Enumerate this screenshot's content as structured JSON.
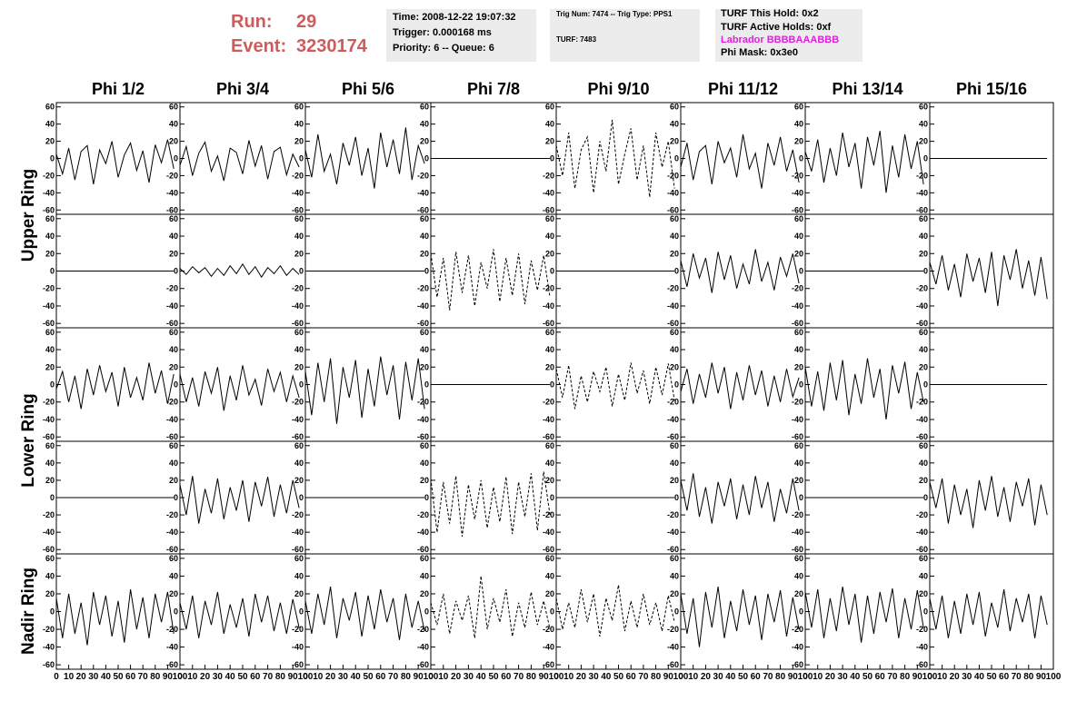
{
  "header": {
    "run_label": "Run:",
    "run": "29",
    "event_label": "Event:",
    "event": "3230174",
    "info_boxes": [
      [
        "Time: 2008-12-22 19:07:32",
        "Trigger: 0.000168 ms",
        "Priority: 6 -- Queue: 6"
      ],
      [
        "Trig Num: 7474 -- Trig Type: PPS1",
        "TURF: 7483"
      ],
      [
        "TURF This Hold: 0x2",
        "TURF Active Holds: 0xf",
        "Labrador BBBBAAABBB",
        "Phi Mask: 0x3e0"
      ]
    ]
  },
  "chart_data": {
    "type": "line",
    "columns": [
      "Phi 1/2",
      "Phi 3/4",
      "Phi 5/6",
      "Phi 7/8",
      "Phi 9/10",
      "Phi 11/12",
      "Phi 13/14",
      "Phi 15/16"
    ],
    "row_labels": [
      "Upper Ring",
      "Lower Ring",
      "Nadir Ring"
    ],
    "x": [
      0,
      5,
      10,
      15,
      20,
      25,
      30,
      35,
      40,
      45,
      50,
      55,
      60,
      65,
      70,
      75,
      80,
      85,
      90,
      95
    ],
    "xlim": [
      0,
      100
    ],
    "xticks": [
      0,
      10,
      20,
      30,
      40,
      50,
      60,
      70,
      80,
      90,
      100
    ],
    "ylim": [
      -65,
      65
    ],
    "yticks": [
      -60,
      -40,
      -20,
      0,
      20,
      40,
      60
    ],
    "line_color": "#000000",
    "panels": [
      [
        {
          "dashed": false,
          "values": [
            5,
            -18,
            12,
            -25,
            8,
            15,
            -30,
            10,
            -6,
            20,
            -22,
            4,
            18,
            -14,
            9,
            -28,
            16,
            -5,
            22,
            -12
          ]
        },
        {
          "dashed": false,
          "values": [
            -8,
            14,
            -20,
            6,
            19,
            -15,
            3,
            -26,
            12,
            7,
            -18,
            21,
            -9,
            15,
            -24,
            8,
            13,
            -19,
            5,
            -10
          ]
        },
        {
          "dashed": false,
          "values": [
            10,
            -22,
            28,
            -15,
            5,
            -30,
            18,
            -8,
            25,
            -20,
            12,
            -35,
            30,
            -10,
            22,
            -18,
            36,
            -25,
            15,
            -6
          ]
        },
        {
          "dashed": false,
          "values": [
            0,
            0,
            0,
            0,
            0,
            0,
            0,
            0,
            0,
            0,
            0,
            0,
            0,
            0,
            0,
            0,
            0,
            0,
            0,
            0
          ]
        },
        {
          "dashed": true,
          "values": [
            15,
            -20,
            30,
            -35,
            10,
            25,
            -40,
            20,
            -15,
            45,
            -30,
            5,
            35,
            -25,
            15,
            -45,
            30,
            -10,
            20,
            -35
          ]
        },
        {
          "dashed": false,
          "values": [
            -10,
            18,
            -25,
            8,
            15,
            -30,
            20,
            -5,
            12,
            -22,
            28,
            -12,
            6,
            -35,
            18,
            -8,
            25,
            -15,
            10,
            -28
          ]
        },
        {
          "dashed": false,
          "values": [
            8,
            -15,
            22,
            -28,
            12,
            -20,
            30,
            -10,
            18,
            -35,
            25,
            -8,
            32,
            -40,
            15,
            -22,
            28,
            -12,
            20,
            -30
          ]
        },
        {
          "dashed": false,
          "values": [
            0,
            0,
            0,
            0,
            0,
            0,
            0,
            0,
            0,
            0,
            0,
            0,
            0,
            0,
            0,
            0,
            0,
            0,
            0,
            0
          ]
        }
      ],
      [
        {
          "dashed": false,
          "values": [
            0,
            0,
            0,
            0,
            0,
            0,
            0,
            0,
            0,
            0,
            0,
            0,
            0,
            0,
            0,
            0,
            0,
            0,
            0,
            0
          ]
        },
        {
          "dashed": false,
          "values": [
            3,
            -4,
            5,
            -2,
            4,
            -6,
            3,
            -5,
            6,
            -3,
            8,
            -4,
            5,
            -7,
            4,
            -3,
            6,
            -5,
            3,
            -4
          ]
        },
        {
          "dashed": false,
          "values": [
            0,
            0,
            0,
            0,
            0,
            0,
            0,
            0,
            0,
            0,
            0,
            0,
            0,
            0,
            0,
            0,
            0,
            0,
            0,
            0
          ]
        },
        {
          "dashed": true,
          "values": [
            20,
            -30,
            15,
            -45,
            22,
            -25,
            18,
            -40,
            10,
            -20,
            25,
            -35,
            15,
            -28,
            20,
            -38,
            12,
            -22,
            18,
            -30
          ]
        },
        {
          "dashed": false,
          "values": [
            0,
            0,
            0,
            0,
            0,
            0,
            0,
            0,
            0,
            0,
            0,
            0,
            0,
            0,
            0,
            0,
            0,
            0,
            0,
            0
          ]
        },
        {
          "dashed": false,
          "values": [
            12,
            -18,
            20,
            -8,
            15,
            -25,
            22,
            -10,
            18,
            -20,
            8,
            -15,
            25,
            -12,
            10,
            -22,
            16,
            -6,
            20,
            -14
          ]
        },
        {
          "dashed": false,
          "values": [
            0,
            0,
            0,
            0,
            0,
            0,
            0,
            0,
            0,
            0,
            0,
            0,
            0,
            0,
            0,
            0,
            0,
            0,
            0,
            0
          ]
        },
        {
          "dashed": false,
          "values": [
            10,
            -15,
            18,
            -22,
            8,
            -30,
            20,
            -12,
            15,
            -25,
            22,
            -40,
            18,
            -10,
            25,
            -20,
            12,
            -28,
            16,
            -32
          ]
        }
      ],
      [
        {
          "dashed": false,
          "values": [
            -5,
            15,
            -20,
            10,
            -28,
            18,
            -12,
            22,
            -8,
            14,
            -25,
            20,
            -15,
            8,
            -18,
            25,
            -10,
            16,
            -22,
            12
          ]
        },
        {
          "dashed": false,
          "values": [
            12,
            -20,
            8,
            -25,
            15,
            -10,
            20,
            -30,
            10,
            -18,
            22,
            -12,
            6,
            -24,
            18,
            -8,
            14,
            -20,
            10,
            -15
          ]
        },
        {
          "dashed": false,
          "values": [
            15,
            -35,
            25,
            -20,
            30,
            -45,
            20,
            -15,
            28,
            -38,
            18,
            -25,
            32,
            -12,
            22,
            -40,
            26,
            -18,
            30,
            -28
          ]
        },
        {
          "dashed": false,
          "values": [
            0,
            0,
            0,
            0,
            0,
            0,
            0,
            0,
            0,
            0,
            0,
            0,
            0,
            0,
            0,
            0,
            0,
            0,
            0,
            0
          ]
        },
        {
          "dashed": true,
          "values": [
            18,
            -15,
            22,
            -28,
            10,
            -20,
            15,
            -8,
            20,
            -25,
            12,
            -18,
            25,
            -10,
            16,
            -22,
            20,
            -12,
            24,
            -18
          ]
        },
        {
          "dashed": false,
          "values": [
            -8,
            18,
            -22,
            12,
            -15,
            25,
            -10,
            20,
            -28,
            14,
            -18,
            22,
            -12,
            16,
            -25,
            10,
            -20,
            18,
            -14,
            8
          ]
        },
        {
          "dashed": false,
          "values": [
            20,
            -25,
            15,
            -30,
            25,
            -18,
            28,
            -35,
            12,
            -22,
            30,
            -15,
            18,
            -40,
            22,
            -10,
            26,
            -28,
            14,
            -20
          ]
        },
        {
          "dashed": false,
          "values": [
            0,
            0,
            0,
            0,
            0,
            0,
            0,
            0,
            0,
            0,
            0,
            0,
            0,
            0,
            0,
            0,
            0,
            0,
            0,
            0
          ]
        }
      ],
      [
        {
          "dashed": false,
          "values": [
            0,
            0,
            0,
            0,
            0,
            0,
            0,
            0,
            0,
            0,
            0,
            0,
            0,
            0,
            0,
            0,
            0,
            0,
            0,
            0
          ]
        },
        {
          "dashed": false,
          "values": [
            15,
            -20,
            25,
            -30,
            10,
            -18,
            22,
            -25,
            12,
            -15,
            20,
            -28,
            18,
            -10,
            24,
            -22,
            15,
            -18,
            20,
            -12
          ]
        },
        {
          "dashed": false,
          "values": [
            0,
            0,
            0,
            0,
            0,
            0,
            0,
            0,
            0,
            0,
            0,
            0,
            0,
            0,
            0,
            0,
            0,
            0,
            0,
            0
          ]
        },
        {
          "dashed": true,
          "values": [
            22,
            -40,
            18,
            -30,
            25,
            -45,
            15,
            -25,
            20,
            -35,
            12,
            -28,
            24,
            -42,
            18,
            -22,
            28,
            -38,
            30,
            -20
          ]
        },
        {
          "dashed": false,
          "values": [
            0,
            0,
            0,
            0,
            0,
            0,
            0,
            0,
            0,
            0,
            0,
            0,
            0,
            0,
            0,
            0,
            0,
            0,
            0,
            0
          ]
        },
        {
          "dashed": false,
          "values": [
            20,
            -15,
            28,
            -22,
            12,
            -30,
            18,
            -10,
            22,
            -25,
            15,
            -20,
            25,
            -12,
            18,
            -28,
            10,
            -18,
            22,
            -15
          ]
        },
        {
          "dashed": false,
          "values": [
            0,
            0,
            0,
            0,
            0,
            0,
            0,
            0,
            0,
            0,
            0,
            0,
            0,
            0,
            0,
            0,
            0,
            0,
            0,
            0
          ]
        },
        {
          "dashed": false,
          "values": [
            18,
            -12,
            22,
            -30,
            15,
            -20,
            10,
            -35,
            20,
            -15,
            25,
            -22,
            12,
            -28,
            18,
            -10,
            22,
            -32,
            15,
            -20
          ]
        }
      ],
      [
        {
          "dashed": false,
          "values": [
            15,
            -30,
            20,
            -25,
            10,
            -38,
            22,
            -15,
            18,
            -28,
            12,
            -35,
            25,
            -20,
            16,
            -30,
            20,
            -12,
            22,
            -25
          ]
        },
        {
          "dashed": false,
          "values": [
            10,
            -20,
            18,
            -30,
            12,
            -15,
            22,
            -25,
            8,
            -18,
            15,
            -28,
            20,
            -12,
            18,
            -22,
            10,
            -25,
            14,
            -18
          ]
        },
        {
          "dashed": false,
          "values": [
            12,
            -25,
            20,
            -15,
            28,
            -30,
            15,
            -10,
            22,
            -28,
            18,
            -20,
            25,
            -12,
            15,
            -32,
            20,
            -18,
            12,
            -22
          ]
        },
        {
          "dashed": true,
          "values": [
            10,
            -15,
            20,
            -25,
            12,
            -10,
            18,
            -30,
            40,
            -20,
            15,
            -12,
            25,
            -28,
            10,
            -18,
            22,
            -15,
            12,
            -20
          ]
        },
        {
          "dashed": true,
          "values": [
            15,
            -20,
            10,
            -18,
            25,
            -12,
            20,
            -28,
            15,
            -10,
            30,
            -22,
            12,
            -18,
            20,
            -15,
            10,
            -22,
            18,
            -12
          ]
        },
        {
          "dashed": false,
          "values": [
            20,
            -25,
            15,
            -40,
            22,
            -18,
            28,
            -30,
            12,
            -22,
            25,
            -15,
            18,
            -32,
            20,
            -12,
            24,
            -28,
            16,
            -20
          ]
        },
        {
          "dashed": false,
          "values": [
            22,
            -18,
            25,
            -30,
            15,
            -22,
            28,
            -15,
            20,
            -35,
            18,
            -25,
            22,
            -12,
            26,
            -30,
            15,
            -20,
            24,
            -18
          ]
        },
        {
          "dashed": false,
          "values": [
            15,
            -20,
            18,
            -30,
            12,
            -25,
            20,
            -15,
            22,
            -28,
            10,
            -18,
            25,
            -22,
            15,
            -12,
            20,
            -30,
            18,
            -15
          ]
        }
      ]
    ]
  }
}
